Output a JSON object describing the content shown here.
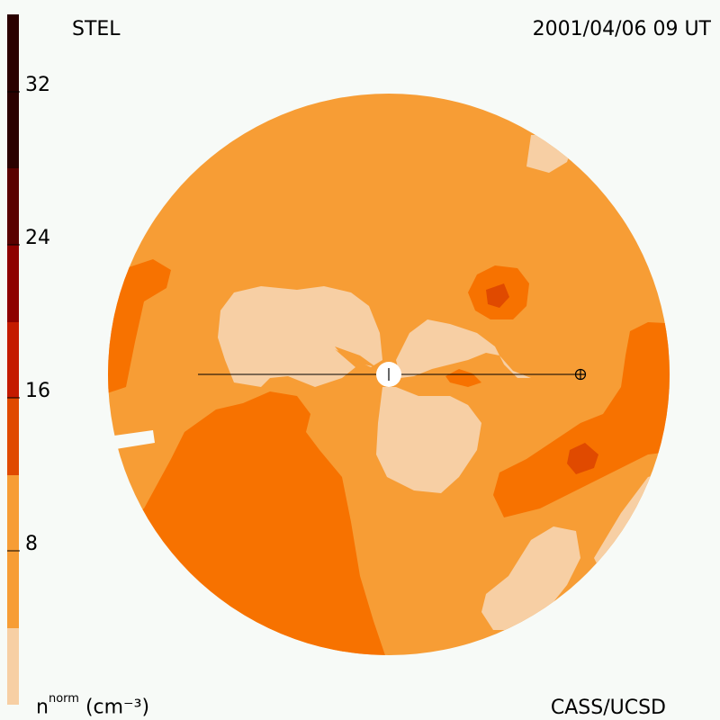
{
  "header": {
    "station": "STEL",
    "timestamp": "2001/04/06 09 UT"
  },
  "footer": {
    "credit": "CASS/UCSD",
    "unit_base": "n",
    "unit_sup": "norm",
    "unit_rest": "(cm⁻³)"
  },
  "colorbar": {
    "tick_labels": [
      "32",
      "24",
      "16",
      "8"
    ],
    "levels": [
      {
        "color": "#f7cfa4"
      },
      {
        "color": "#f79d35"
      },
      {
        "color": "#f77200"
      },
      {
        "color": "#e04a00"
      },
      {
        "color": "#c41b00"
      },
      {
        "color": "#8e0000"
      },
      {
        "color": "#5a0000"
      },
      {
        "color": "#2a0000"
      }
    ]
  },
  "map": {
    "base_color": "#f79d35",
    "observer_symbol": "Earth"
  }
}
